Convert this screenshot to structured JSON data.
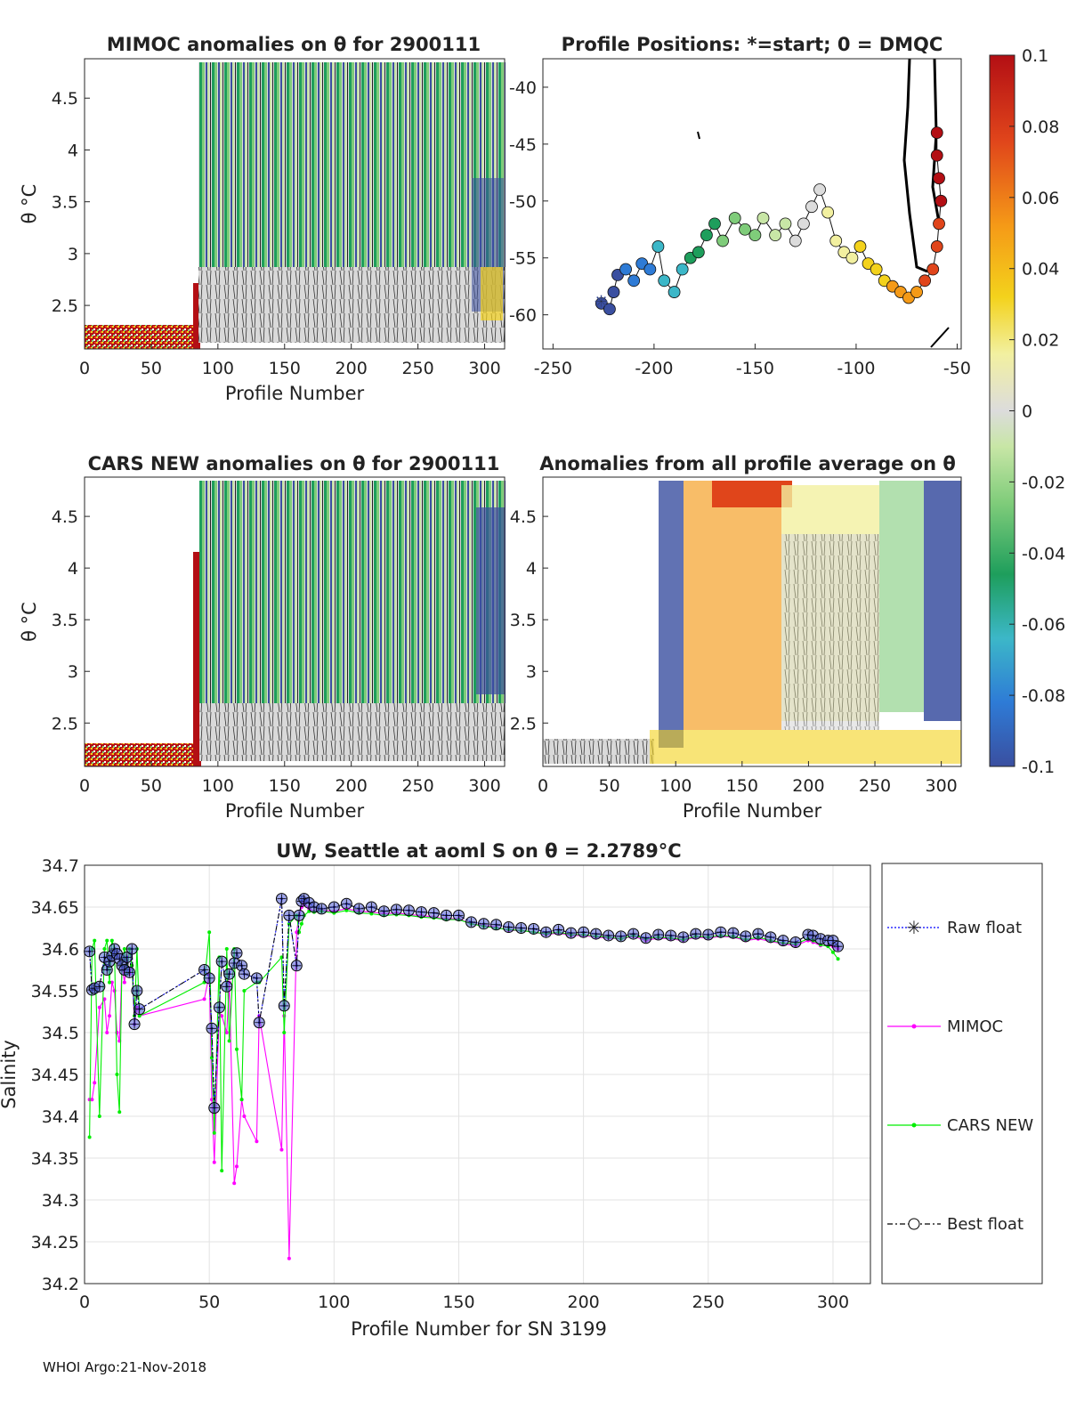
{
  "footer": "WHOI Argo:21-Nov-2018",
  "colorbar": {
    "ticks": [
      "0.1",
      "0.08",
      "0.06",
      "0.04",
      "0.02",
      "0",
      "-0.02",
      "-0.04",
      "-0.06",
      "-0.08",
      "-0.1"
    ],
    "range": [
      -0.1,
      0.1
    ],
    "colors": [
      "#3a4fa0",
      "#2e7bd6",
      "#3cb7c8",
      "#1e9e5c",
      "#7fcc7a",
      "#c8e6a6",
      "#dcdcdc",
      "#f2f0a0",
      "#f3d21c",
      "#f59a17",
      "#e0451b",
      "#b30f14"
    ]
  },
  "panels": [
    {
      "id": "mimoc",
      "title": "MIMOC anomalies on θ  for 2900111",
      "xlabel": "Profile Number",
      "ylabel": "θ °C",
      "xticks": [
        "0",
        "50",
        "100",
        "150",
        "200",
        "250",
        "300"
      ],
      "yticks": [
        "4.5",
        "4",
        "3.5",
        "3",
        "2.5"
      ],
      "xrange": [
        0,
        315
      ],
      "yrange": [
        2.08,
        4.88
      ],
      "theta_values": [
        4.5,
        4,
        3.5,
        3,
        2.5
      ]
    },
    {
      "id": "positions",
      "title": "Profile Positions: *=start; 0 = DMQC",
      "xticks": [
        "-250",
        "-200",
        "-150",
        "-100",
        "-50"
      ],
      "yticks": [
        "-40",
        "-45",
        "-50",
        "-55",
        "-60"
      ],
      "xrange": [
        -255,
        -48
      ],
      "yrange": [
        -63,
        -37.5
      ]
    },
    {
      "id": "cars",
      "title": "CARS NEW anomalies on θ for 2900111",
      "xlabel": "Profile Number",
      "ylabel": "θ °C",
      "xticks": [
        "0",
        "50",
        "100",
        "150",
        "200",
        "250",
        "300"
      ],
      "yticks": [
        "4.5",
        "4",
        "3.5",
        "3",
        "2.5"
      ],
      "xrange": [
        0,
        315
      ],
      "yrange": [
        2.08,
        4.88
      ]
    },
    {
      "id": "profile-avg",
      "title": "Anomalies from all profile average on θ",
      "xlabel": "Profile Number",
      "ylabel": "θ °C",
      "xticks": [
        "0",
        "50",
        "100",
        "150",
        "200",
        "250",
        "300"
      ],
      "yticks": [
        "4.5",
        "4",
        "3.5",
        "3",
        "2.5"
      ],
      "xrange": [
        0,
        315
      ],
      "yrange": [
        2.08,
        4.88
      ]
    }
  ],
  "chart_data": {
    "type": "line",
    "title": "UW, Seattle at aoml S on θ = 2.2789°C",
    "xlabel": "Profile Number for SN 3199",
    "ylabel": "Salinity",
    "xlim": [
      0,
      315
    ],
    "ylim": [
      34.2,
      34.7
    ],
    "xticks": [
      "0",
      "50",
      "100",
      "150",
      "200",
      "250",
      "300"
    ],
    "yticks": [
      "34.7",
      "34.65",
      "34.6",
      "34.55",
      "34.5",
      "34.45",
      "34.4",
      "34.35",
      "34.3",
      "34.25",
      "34.2"
    ],
    "grid": true,
    "legend_position": "right",
    "series": [
      {
        "name": "Raw float",
        "color": "#0000ff",
        "x": [
          2,
          3,
          4,
          6,
          8,
          9,
          10,
          11,
          12,
          13,
          14,
          15,
          16,
          17,
          18,
          19,
          20,
          21,
          22,
          48,
          50,
          51,
          52,
          54,
          55,
          57,
          58,
          60,
          61,
          63,
          64,
          69,
          70,
          79,
          80,
          82,
          85,
          86,
          87,
          88,
          90,
          92,
          95,
          100,
          105,
          110,
          115,
          120,
          125,
          130,
          135,
          140,
          145,
          150,
          155,
          160,
          165,
          170,
          175,
          180,
          185,
          190,
          195,
          200,
          205,
          210,
          215,
          220,
          225,
          230,
          235,
          240,
          245,
          250,
          255,
          260,
          265,
          270,
          275,
          280,
          285,
          290,
          292,
          295,
          298,
          300,
          302
        ],
        "y": [
          34.597,
          34.551,
          34.553,
          34.555,
          34.59,
          34.575,
          34.585,
          34.592,
          34.6,
          34.594,
          34.588,
          34.58,
          34.575,
          34.59,
          34.572,
          34.6,
          34.51,
          34.55,
          34.528,
          34.575,
          34.565,
          34.505,
          34.41,
          34.53,
          34.585,
          34.555,
          34.57,
          34.583,
          34.595,
          34.58,
          34.57,
          34.565,
          34.512,
          34.66,
          34.532,
          34.64,
          34.58,
          34.64,
          34.657,
          34.66,
          34.655,
          34.65,
          34.648,
          34.65,
          34.654,
          34.648,
          34.65,
          34.645,
          34.647,
          34.646,
          34.644,
          34.643,
          34.64,
          34.64,
          34.632,
          34.63,
          34.629,
          34.626,
          34.625,
          34.624,
          34.62,
          34.623,
          34.619,
          34.62,
          34.618,
          34.616,
          34.615,
          34.618,
          34.613,
          34.617,
          34.616,
          34.614,
          34.618,
          34.617,
          34.62,
          34.619,
          34.615,
          34.618,
          34.614,
          34.61,
          34.608,
          34.617,
          34.616,
          34.612,
          34.61,
          34.61,
          34.603
        ]
      },
      {
        "name": "MIMOC",
        "color": "#ff00ff",
        "x": [
          2,
          3,
          4,
          6,
          8,
          9,
          10,
          11,
          12,
          13,
          14,
          15,
          16,
          17,
          18,
          19,
          20,
          21,
          22,
          48,
          50,
          51,
          52,
          54,
          55,
          57,
          58,
          60,
          61,
          63,
          64,
          69,
          70,
          79,
          80,
          82,
          85,
          86,
          87,
          88,
          90,
          92,
          95,
          100,
          105,
          110,
          115,
          120,
          125,
          130,
          135,
          140,
          145,
          150,
          155,
          160,
          165,
          170,
          175,
          180,
          185,
          190,
          195,
          200,
          205,
          210,
          215,
          220,
          225,
          230,
          235,
          240,
          245,
          250,
          255,
          260,
          265,
          270,
          275,
          280,
          285,
          290,
          292,
          295,
          298,
          300,
          302
        ],
        "y": [
          34.42,
          34.42,
          34.44,
          34.53,
          34.54,
          34.5,
          34.52,
          34.56,
          34.55,
          34.5,
          34.49,
          34.58,
          34.56,
          34.59,
          34.57,
          34.58,
          34.51,
          34.53,
          34.52,
          34.54,
          34.57,
          34.42,
          34.345,
          34.525,
          34.52,
          34.5,
          34.56,
          34.32,
          34.34,
          34.42,
          34.4,
          34.37,
          34.52,
          34.36,
          34.52,
          34.23,
          34.62,
          34.64,
          34.65,
          34.655,
          34.648,
          34.645,
          34.646,
          34.645,
          34.648,
          34.645,
          34.644,
          34.642,
          34.643,
          34.641,
          34.64,
          34.638,
          34.636,
          34.636,
          34.63,
          34.628,
          34.626,
          34.622,
          34.622,
          34.62,
          34.617,
          34.619,
          34.616,
          34.616,
          34.614,
          34.613,
          34.612,
          34.615,
          34.61,
          34.613,
          34.612,
          34.61,
          34.614,
          34.613,
          34.615,
          34.614,
          34.61,
          34.612,
          34.609,
          34.606,
          34.604,
          34.61,
          34.608,
          34.604,
          34.604,
          34.603,
          34.6
        ]
      },
      {
        "name": "CARS NEW",
        "color": "#00ee00",
        "x": [
          2,
          3,
          4,
          6,
          8,
          9,
          10,
          11,
          12,
          13,
          14,
          15,
          16,
          17,
          18,
          19,
          20,
          21,
          22,
          48,
          50,
          51,
          52,
          54,
          55,
          57,
          58,
          60,
          61,
          63,
          64,
          69,
          70,
          79,
          80,
          82,
          85,
          86,
          87,
          88,
          90,
          92,
          95,
          100,
          105,
          110,
          115,
          120,
          125,
          130,
          135,
          140,
          145,
          150,
          155,
          160,
          165,
          170,
          175,
          180,
          185,
          190,
          195,
          200,
          205,
          210,
          215,
          220,
          225,
          230,
          235,
          240,
          245,
          250,
          255,
          260,
          265,
          270,
          275,
          280,
          285,
          290,
          292,
          295,
          298,
          300,
          302
        ],
        "y": [
          34.375,
          34.6,
          34.61,
          34.4,
          34.6,
          34.61,
          34.56,
          34.61,
          34.6,
          34.45,
          34.405,
          34.58,
          34.6,
          34.57,
          34.6,
          34.58,
          34.52,
          34.6,
          34.52,
          34.56,
          34.62,
          34.47,
          34.38,
          34.59,
          34.335,
          34.6,
          34.49,
          34.6,
          34.48,
          34.42,
          34.55,
          34.56,
          34.56,
          34.59,
          34.5,
          34.63,
          34.64,
          34.62,
          34.63,
          34.64,
          34.645,
          34.644,
          34.645,
          34.643,
          34.646,
          34.643,
          34.642,
          34.64,
          34.641,
          34.64,
          34.638,
          34.637,
          34.635,
          34.635,
          34.63,
          34.627,
          34.625,
          34.623,
          34.622,
          34.62,
          34.618,
          34.62,
          34.617,
          34.617,
          34.615,
          34.614,
          34.612,
          34.616,
          34.612,
          34.614,
          34.613,
          34.611,
          34.615,
          34.614,
          34.616,
          34.615,
          34.611,
          34.614,
          34.61,
          34.607,
          34.606,
          34.612,
          34.61,
          34.605,
          34.603,
          34.596,
          34.588
        ]
      },
      {
        "name": "Best float",
        "color": "#000000",
        "x": [
          2,
          3,
          4,
          6,
          8,
          9,
          10,
          11,
          12,
          13,
          14,
          15,
          16,
          17,
          18,
          19,
          20,
          21,
          22,
          48,
          50,
          51,
          52,
          54,
          55,
          57,
          58,
          60,
          61,
          63,
          64,
          69,
          70,
          79,
          80,
          82,
          85,
          86,
          87,
          88,
          90,
          92,
          95,
          100,
          105,
          110,
          115,
          120,
          125,
          130,
          135,
          140,
          145,
          150,
          155,
          160,
          165,
          170,
          175,
          180,
          185,
          190,
          195,
          200,
          205,
          210,
          215,
          220,
          225,
          230,
          235,
          240,
          245,
          250,
          255,
          260,
          265,
          270,
          275,
          280,
          285,
          290,
          292,
          295,
          298,
          300,
          302
        ],
        "y": [
          34.597,
          34.551,
          34.553,
          34.555,
          34.59,
          34.575,
          34.585,
          34.592,
          34.6,
          34.594,
          34.588,
          34.58,
          34.575,
          34.59,
          34.572,
          34.6,
          34.51,
          34.55,
          34.528,
          34.575,
          34.565,
          34.505,
          34.41,
          34.53,
          34.585,
          34.555,
          34.57,
          34.583,
          34.595,
          34.58,
          34.57,
          34.565,
          34.512,
          34.66,
          34.532,
          34.64,
          34.58,
          34.64,
          34.657,
          34.66,
          34.655,
          34.65,
          34.648,
          34.65,
          34.654,
          34.648,
          34.65,
          34.645,
          34.647,
          34.646,
          34.644,
          34.643,
          34.64,
          34.64,
          34.632,
          34.63,
          34.629,
          34.626,
          34.625,
          34.624,
          34.62,
          34.623,
          34.619,
          34.62,
          34.618,
          34.616,
          34.615,
          34.618,
          34.613,
          34.617,
          34.616,
          34.614,
          34.618,
          34.617,
          34.62,
          34.619,
          34.615,
          34.618,
          34.614,
          34.61,
          34.608,
          34.617,
          34.616,
          34.612,
          34.61,
          34.61,
          34.603
        ]
      }
    ]
  }
}
